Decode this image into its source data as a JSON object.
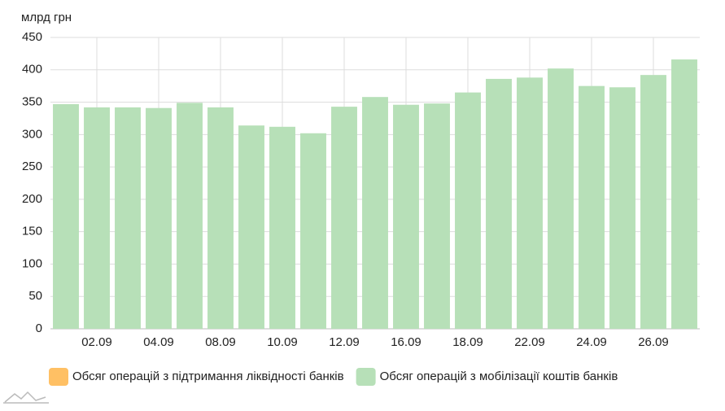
{
  "chart_data": {
    "type": "bar",
    "y_label": "млрд грн",
    "categories": [
      null,
      "02.09",
      null,
      "04.09",
      null,
      "08.09",
      null,
      "10.09",
      null,
      "12.09",
      null,
      "16.09",
      null,
      "18.09",
      null,
      "22.09",
      null,
      "24.09",
      null,
      "26.09",
      null
    ],
    "series": [
      {
        "name": "Обсяг операцій з підтримання ліквідності банків",
        "color": "#ffc064",
        "values": [
          null,
          null,
          null,
          null,
          null,
          null,
          null,
          null,
          null,
          null,
          null,
          null,
          null,
          null,
          null,
          null,
          null,
          null,
          null,
          null,
          null
        ]
      },
      {
        "name": "Обсяг операцій з мобілізації коштів банків",
        "color": "#b7e0b8",
        "values": [
          347,
          342,
          342,
          341,
          349,
          342,
          314,
          312,
          302,
          343,
          358,
          346,
          348,
          365,
          386,
          388,
          402,
          375,
          373,
          392,
          416
        ]
      }
    ],
    "ylim": [
      0,
      450
    ],
    "yticks": [
      0,
      50,
      100,
      150,
      200,
      250,
      300,
      350,
      400,
      450
    ],
    "grid": true
  }
}
